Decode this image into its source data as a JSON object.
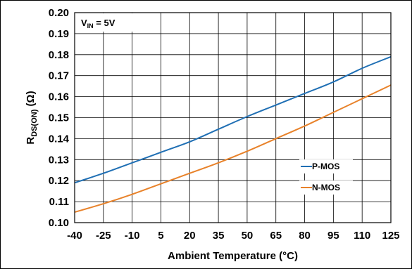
{
  "chart_data": {
    "type": "line",
    "title": "",
    "xlabel": "Ambient Temperature (°C)",
    "ylabel": {
      "main": "R",
      "sub": "DS(ON)",
      "unit": " (Ω)"
    },
    "annotation": {
      "main": "V",
      "sub": "IN",
      "rest": " = 5V"
    },
    "x": [
      -40,
      -25,
      -10,
      5,
      20,
      35,
      50,
      65,
      80,
      95,
      110,
      125
    ],
    "x_ticks": [
      "-40",
      "-25",
      "-10",
      "5",
      "20",
      "35",
      "50",
      "65",
      "80",
      "95",
      "110",
      "125"
    ],
    "y_ticks": [
      "0.10",
      "0.11",
      "0.12",
      "0.13",
      "0.14",
      "0.15",
      "0.16",
      "0.17",
      "0.18",
      "0.19",
      "0.20"
    ],
    "xlim": [
      -40,
      125
    ],
    "ylim": [
      0.1,
      0.2
    ],
    "grid": true,
    "legend_position": "lower-right",
    "series": [
      {
        "name": "P-MOS",
        "color": "#1f6fb4",
        "values": [
          0.119,
          0.1235,
          0.1285,
          0.1335,
          0.1385,
          0.1445,
          0.1505,
          0.156,
          0.1615,
          0.167,
          0.1735,
          0.179
        ]
      },
      {
        "name": "N-MOS",
        "color": "#e8822a",
        "values": [
          0.105,
          0.109,
          0.1135,
          0.1185,
          0.1235,
          0.1285,
          0.134,
          0.14,
          0.146,
          0.1525,
          0.159,
          0.1655
        ]
      }
    ]
  }
}
